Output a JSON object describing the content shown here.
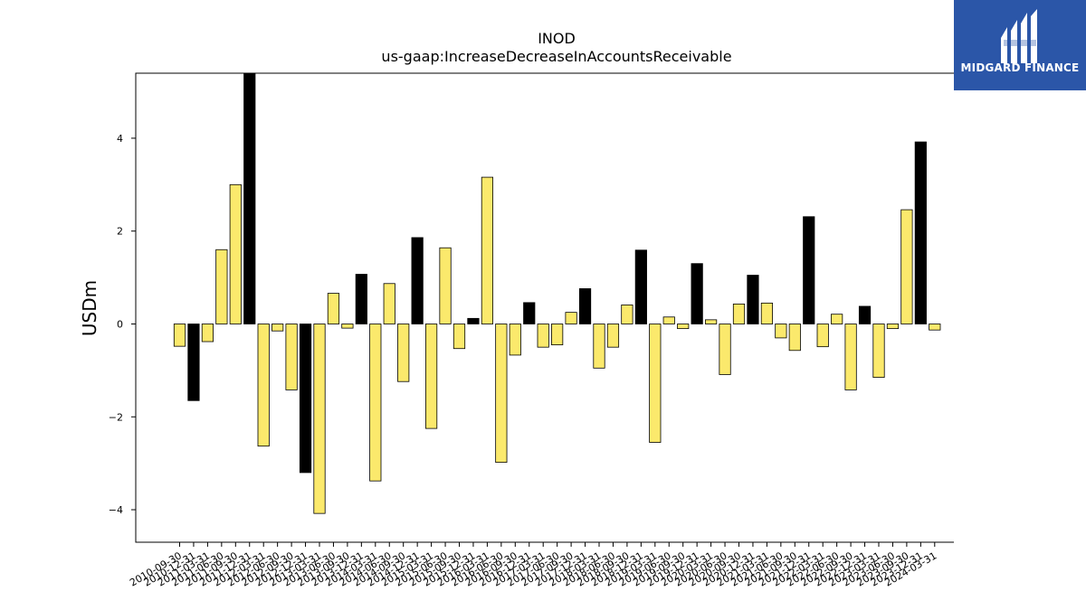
{
  "brand": {
    "name": "MIDGARD FINANCE",
    "bg_color": "#2b56a8",
    "fg_color": "#ffffff"
  },
  "chart_data": {
    "type": "bar",
    "title": "INOD",
    "subtitle": "us-gaap:IncreaseDecreaseInAccountsReceivable",
    "xlabel": "",
    "ylabel": "USDm",
    "ylim": [
      -4.7,
      5.4
    ],
    "yticks": [
      -4,
      -2,
      0,
      2,
      4
    ],
    "ytick_labels": [
      "−4",
      "−2",
      "0",
      "2",
      "4"
    ],
    "grid": false,
    "colors": {
      "highlight": "#000000",
      "normal": "#fbe96c",
      "edge": "#000000"
    },
    "categories": [
      "2010-09-30",
      "2010-12-31",
      "2011-03-31",
      "2011-06-30",
      "2011-09-30",
      "2011-12-31",
      "2012-03-31",
      "2012-06-30",
      "2012-09-30",
      "2012-12-31",
      "2013-03-31",
      "2013-06-30",
      "2013-09-30",
      "2013-12-31",
      "2014-03-31",
      "2014-06-30",
      "2014-09-30",
      "2014-12-31",
      "2015-03-31",
      "2015-06-30",
      "2015-09-30",
      "2015-12-31",
      "2016-03-31",
      "2016-06-30",
      "2016-09-30",
      "2016-12-31",
      "2017-03-31",
      "2017-06-30",
      "2017-09-30",
      "2017-12-31",
      "2018-03-31",
      "2018-06-30",
      "2018-09-30",
      "2018-12-31",
      "2019-03-31",
      "2019-06-30",
      "2019-09-30",
      "2019-12-31",
      "2020-03-31",
      "2020-06-30",
      "2020-09-30",
      "2020-12-31",
      "2021-03-31",
      "2021-06-30",
      "2021-09-30",
      "2021-12-31",
      "2022-03-31",
      "2022-06-30",
      "2022-09-30",
      "2022-12-31",
      "2023-03-31",
      "2023-06-30",
      "2023-09-30",
      "2023-12-31",
      "2024-03-31"
    ],
    "tick_labels": [
      "2010-09-30",
      "2010-12-31",
      "2011-03-31",
      "2011-06-30",
      "2011-09-30",
      "2011-12-31",
      "2012-03-31",
      "2012-06-30",
      "2012-09-30",
      "2012-12-31",
      "2013-03-31",
      "2013-06-30",
      "2013-09-30",
      "2013-12-31",
      "2014-03-31",
      "2014-06-30",
      "2014-09-30",
      "2014-12-31",
      "2015-03-31",
      "2015-06-30",
      "2015-09-30",
      "2015-12-31",
      "2016-03-31",
      "2016-06-30",
      "2016-09-30",
      "2016-12-31",
      "2017-03-31",
      "2017-06-30",
      "2017-09-30",
      "2017-12-31",
      "2018-03-31",
      "2018-06-30",
      "2018-09-30",
      "2018-12-31",
      "2019-03-31",
      "2019-06-30",
      "2019-09-30",
      "2019-12-31",
      "2020-03-31",
      "2020-06-30",
      "2020-09-30",
      "2020-12-31",
      "2021-03-31",
      "2021-06-30",
      "2021-09-30",
      "2021-12-31",
      "2022-03-31",
      "2022-06-30",
      "2022-09-30",
      "2022-12-31",
      "2023-03-31",
      "2023-06-30",
      "2023-09-30",
      "2023-12-31",
      "2024-03-31"
    ],
    "values": [
      -0.48,
      -1.65,
      -0.38,
      1.6,
      3.0,
      5.4,
      -2.63,
      -0.15,
      -1.42,
      -3.2,
      -4.08,
      0.66,
      -0.09,
      1.07,
      -3.38,
      0.87,
      -1.24,
      1.86,
      -2.25,
      1.64,
      -0.53,
      0.12,
      3.16,
      -2.98,
      -0.67,
      0.46,
      -0.5,
      -0.45,
      0.25,
      0.76,
      -0.95,
      -0.5,
      0.41,
      1.59,
      -2.55,
      0.15,
      -0.1,
      1.3,
      0.09,
      -1.09,
      0.43,
      1.05,
      0.45,
      -0.3,
      -0.57,
      2.31,
      -0.49,
      0.21,
      -1.42,
      0.38,
      -1.15,
      -0.1,
      2.46,
      3.92,
      -0.13
    ],
    "highlight": [
      false,
      true,
      false,
      false,
      false,
      true,
      false,
      false,
      false,
      true,
      false,
      false,
      false,
      true,
      false,
      false,
      false,
      true,
      false,
      false,
      false,
      true,
      false,
      false,
      false,
      true,
      false,
      false,
      false,
      true,
      false,
      false,
      false,
      true,
      false,
      false,
      false,
      true,
      false,
      false,
      false,
      true,
      false,
      false,
      false,
      true,
      false,
      false,
      false,
      true,
      false,
      false,
      false,
      true,
      false
    ]
  }
}
